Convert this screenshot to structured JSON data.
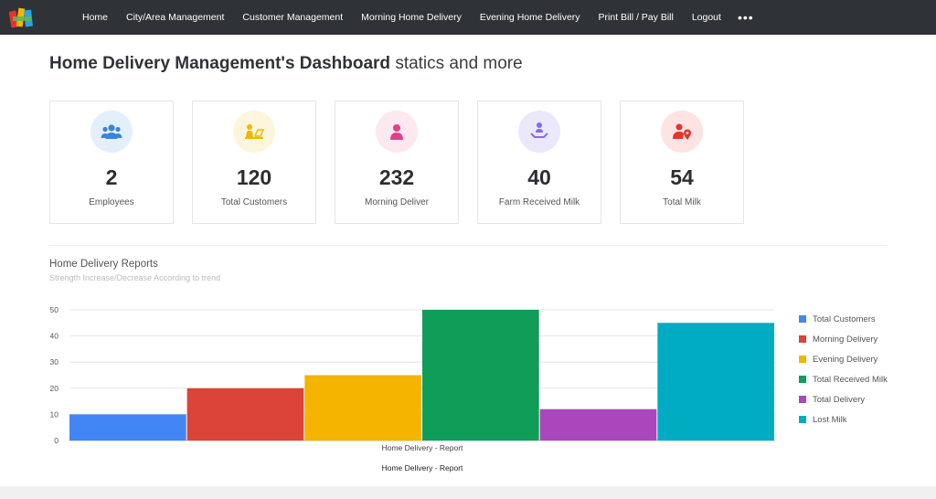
{
  "nav": {
    "items": [
      "Home",
      "City/Area Management",
      "Customer Management",
      "Morning Home Delivery",
      "Evening Home Delivery",
      "Print Bill / Pay Bill",
      "Logout"
    ],
    "more": "•••"
  },
  "page": {
    "title_bold": "Home Delivery Management's Dashboard",
    "title_sub": "statics and more"
  },
  "cards": [
    {
      "value": "2",
      "label": "Employees",
      "icon": "users-icon",
      "bg": "#e3f0fc",
      "color": "#3a86d6"
    },
    {
      "value": "120",
      "label": "Total Customers",
      "icon": "customer-desk-icon",
      "bg": "#fdf5dc",
      "color": "#f0b800"
    },
    {
      "value": "232",
      "label": "Morning Deliver",
      "icon": "person-icon",
      "bg": "#fde8ef",
      "color": "#e0418a"
    },
    {
      "value": "40",
      "label": "Farm Received Milk",
      "icon": "hand-person-icon",
      "bg": "#ece8fb",
      "color": "#8a6ae6"
    },
    {
      "value": "54",
      "label": "Total Milk",
      "icon": "user-location-icon",
      "bg": "#fde3e1",
      "color": "#e0362c"
    }
  ],
  "report": {
    "title": "Home Delivery Reports",
    "subtitle": "Strength Increase/Decrease According to trend"
  },
  "chart_data": {
    "type": "bar",
    "categories": [
      "Home Delivery - Report"
    ],
    "series": [
      {
        "name": "Total Customers",
        "values": [
          10
        ],
        "color": "#4285f4"
      },
      {
        "name": "Morning Delivery",
        "values": [
          20
        ],
        "color": "#db4437"
      },
      {
        "name": "Evening Delivery",
        "values": [
          25
        ],
        "color": "#f4b400"
      },
      {
        "name": "Total Received Milk",
        "values": [
          50
        ],
        "color": "#0f9d58"
      },
      {
        "name": "Total Delivery",
        "values": [
          12
        ],
        "color": "#ab47bc"
      },
      {
        "name": "Lost Milk",
        "values": [
          45
        ],
        "color": "#00acc1"
      }
    ],
    "xlabel": "Home Delivery - Report",
    "ylim": [
      0,
      50
    ],
    "yticks": [
      0,
      10,
      20,
      30,
      40,
      50
    ],
    "grid": true,
    "legend": "right"
  }
}
